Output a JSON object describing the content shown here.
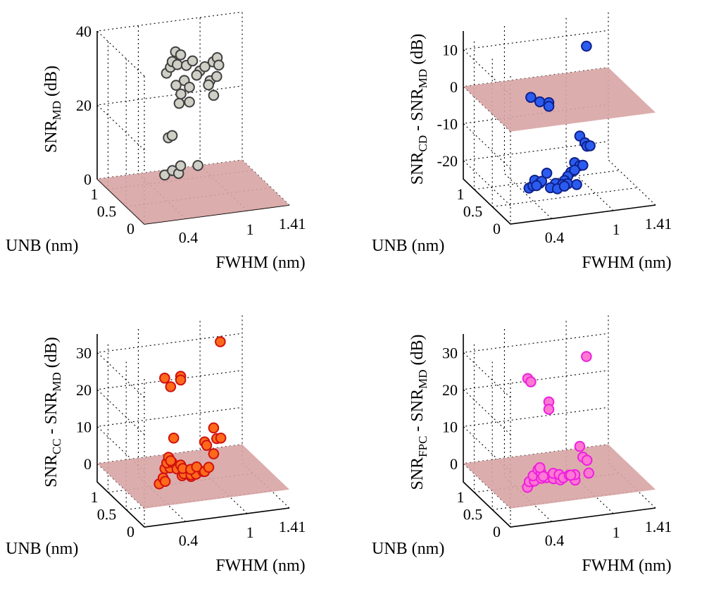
{
  "figure": {
    "layout": "2x2 grid of 3D scatter plots"
  },
  "chart_data": [
    {
      "type": "scatter",
      "dims": 3,
      "panel": "top-left",
      "zlabel": {
        "main": "SNR",
        "sub": "MD",
        "suffix": "(dB)"
      },
      "zlabel_parts": [
        {
          "t": "SNR",
          "sub": false
        },
        {
          "t": "MD",
          "sub": true
        },
        {
          "t": " (dB)",
          "sub": false
        }
      ],
      "xlabel": "FWHM (nm)",
      "ylabel": "UNB (nm)",
      "xticks": [
        "0.4",
        "1",
        "1.41"
      ],
      "yticks": [
        "0",
        "0.5",
        "1"
      ],
      "zticks": [
        "0",
        "20",
        "40"
      ],
      "zlim": [
        0,
        40
      ],
      "plane_z": 0,
      "marker_fill": "#cfcfc6",
      "marker_edge": "#404040",
      "plane_color": "#d8a4a4",
      "points": [
        {
          "x": 0.55,
          "y": 0.7,
          "z": 38
        },
        {
          "x": 0.6,
          "y": 0.7,
          "z": 37
        },
        {
          "x": 0.5,
          "y": 0.65,
          "z": 36
        },
        {
          "x": 0.5,
          "y": 0.7,
          "z": 34
        },
        {
          "x": 0.55,
          "y": 0.65,
          "z": 35
        },
        {
          "x": 0.62,
          "y": 0.6,
          "z": 35
        },
        {
          "x": 0.68,
          "y": 0.6,
          "z": 36
        },
        {
          "x": 0.75,
          "y": 0.6,
          "z": 33
        },
        {
          "x": 0.8,
          "y": 0.6,
          "z": 34
        },
        {
          "x": 0.88,
          "y": 0.6,
          "z": 35
        },
        {
          "x": 0.92,
          "y": 0.6,
          "z": 36
        },
        {
          "x": 0.72,
          "y": 0.6,
          "z": 32
        },
        {
          "x": 0.9,
          "y": 0.5,
          "z": 35
        },
        {
          "x": 0.48,
          "y": 0.75,
          "z": 32
        },
        {
          "x": 0.52,
          "y": 0.6,
          "z": 30
        },
        {
          "x": 0.55,
          "y": 0.55,
          "z": 28
        },
        {
          "x": 0.6,
          "y": 0.6,
          "z": 31
        },
        {
          "x": 0.65,
          "y": 0.6,
          "z": 29
        },
        {
          "x": 0.8,
          "y": 0.5,
          "z": 30
        },
        {
          "x": 0.85,
          "y": 0.6,
          "z": 30
        },
        {
          "x": 0.88,
          "y": 0.5,
          "z": 32
        },
        {
          "x": 0.55,
          "y": 0.6,
          "z": 25
        },
        {
          "x": 0.65,
          "y": 0.6,
          "z": 25
        },
        {
          "x": 0.85,
          "y": 0.5,
          "z": 27
        },
        {
          "x": 0.48,
          "y": 0.7,
          "z": 15
        },
        {
          "x": 0.5,
          "y": 0.65,
          "z": 16
        },
        {
          "x": 0.48,
          "y": 0.8,
          "z": 4
        },
        {
          "x": 0.52,
          "y": 0.7,
          "z": 6
        },
        {
          "x": 0.58,
          "y": 0.7,
          "z": 5
        },
        {
          "x": 0.6,
          "y": 0.7,
          "z": 7
        },
        {
          "x": 0.75,
          "y": 0.65,
          "z": 7
        }
      ]
    },
    {
      "type": "scatter",
      "dims": 3,
      "panel": "top-right",
      "zlabel_parts": [
        {
          "t": "SNR",
          "sub": false
        },
        {
          "t": "CD",
          "sub": true
        },
        {
          "t": " - SNR",
          "sub": false
        },
        {
          "t": "MD",
          "sub": true
        },
        {
          "t": " (dB)",
          "sub": false
        }
      ],
      "xlabel": "FWHM (nm)",
      "ylabel": "UNB (nm)",
      "xticks": [
        "0.4",
        "1",
        "1.41"
      ],
      "yticks": [
        "0",
        "0.5",
        "1"
      ],
      "zticks": [
        "-20",
        "-10",
        "0",
        "10"
      ],
      "zlim": [
        -25,
        15
      ],
      "plane_z": 0,
      "marker_fill": "#2a5cf0",
      "marker_edge": "#10208a",
      "plane_color": "#d8a4a4",
      "points": [
        {
          "x": 0.95,
          "y": 0.6,
          "z": 14
        },
        {
          "x": 0.48,
          "y": 0.8,
          "z": 0
        },
        {
          "x": 0.55,
          "y": 0.75,
          "z": -1
        },
        {
          "x": 0.62,
          "y": 0.7,
          "z": -1
        },
        {
          "x": 0.62,
          "y": 0.7,
          "z": -2
        },
        {
          "x": 0.85,
          "y": 0.5,
          "z": -9
        },
        {
          "x": 0.9,
          "y": 0.5,
          "z": -11
        },
        {
          "x": 0.92,
          "y": 0.5,
          "z": -12
        },
        {
          "x": 0.95,
          "y": 0.5,
          "z": -12
        },
        {
          "x": 0.8,
          "y": 0.5,
          "z": -16
        },
        {
          "x": 0.85,
          "y": 0.5,
          "z": -17
        },
        {
          "x": 0.88,
          "y": 0.5,
          "z": -17
        },
        {
          "x": 0.8,
          "y": 0.5,
          "z": -18
        },
        {
          "x": 0.78,
          "y": 0.55,
          "z": -19
        },
        {
          "x": 0.75,
          "y": 0.55,
          "z": -20
        },
        {
          "x": 0.6,
          "y": 0.7,
          "z": -20
        },
        {
          "x": 0.72,
          "y": 0.55,
          "z": -21
        },
        {
          "x": 0.7,
          "y": 0.55,
          "z": -22
        },
        {
          "x": 0.7,
          "y": 0.5,
          "z": -22
        },
        {
          "x": 0.5,
          "y": 0.75,
          "z": -22
        },
        {
          "x": 0.55,
          "y": 0.7,
          "z": -22
        },
        {
          "x": 0.65,
          "y": 0.6,
          "z": -22
        },
        {
          "x": 0.75,
          "y": 0.55,
          "z": -22
        },
        {
          "x": 0.82,
          "y": 0.5,
          "z": -22
        },
        {
          "x": 0.5,
          "y": 0.7,
          "z": -23
        },
        {
          "x": 0.55,
          "y": 0.75,
          "z": -23
        },
        {
          "x": 0.6,
          "y": 0.6,
          "z": -23
        },
        {
          "x": 0.65,
          "y": 0.55,
          "z": -23
        },
        {
          "x": 0.5,
          "y": 0.8,
          "z": -24
        },
        {
          "x": 0.48,
          "y": 0.85,
          "z": -25
        }
      ]
    },
    {
      "type": "scatter",
      "dims": 3,
      "panel": "bottom-left",
      "zlabel_parts": [
        {
          "t": "SNR",
          "sub": false
        },
        {
          "t": "CC",
          "sub": true
        },
        {
          "t": " - SNR",
          "sub": false
        },
        {
          "t": "MD",
          "sub": true
        },
        {
          "t": " (dB)",
          "sub": false
        }
      ],
      "xlabel": "FWHM (nm)",
      "ylabel": "UNB (nm)",
      "xticks": [
        "0.4",
        "1",
        "1.41"
      ],
      "yticks": [
        "0",
        "0.5",
        "1"
      ],
      "zticks": [
        "0",
        "10",
        "20",
        "30"
      ],
      "zlim": [
        -5,
        35
      ],
      "plane_z": 0,
      "marker_fill": "#ff6a1a",
      "marker_edge": "#d01010",
      "plane_color": "#d8a4a4",
      "points": [
        {
          "x": 0.95,
          "y": 0.6,
          "z": 36
        },
        {
          "x": 0.48,
          "y": 0.8,
          "z": 26
        },
        {
          "x": 0.52,
          "y": 0.75,
          "z": 24
        },
        {
          "x": 0.6,
          "y": 0.7,
          "z": 27
        },
        {
          "x": 0.6,
          "y": 0.7,
          "z": 26
        },
        {
          "x": 0.85,
          "y": 0.5,
          "z": 14
        },
        {
          "x": 0.88,
          "y": 0.5,
          "z": 11
        },
        {
          "x": 0.92,
          "y": 0.5,
          "z": 11
        },
        {
          "x": 0.78,
          "y": 0.55,
          "z": 10
        },
        {
          "x": 0.8,
          "y": 0.55,
          "z": 9
        },
        {
          "x": 0.55,
          "y": 0.75,
          "z": 10
        },
        {
          "x": 0.85,
          "y": 0.5,
          "z": 7
        },
        {
          "x": 0.5,
          "y": 0.75,
          "z": 5
        },
        {
          "x": 0.52,
          "y": 0.75,
          "z": 4
        },
        {
          "x": 0.5,
          "y": 0.8,
          "z": 3
        },
        {
          "x": 0.55,
          "y": 0.8,
          "z": 3
        },
        {
          "x": 0.6,
          "y": 0.7,
          "z": 3
        },
        {
          "x": 0.62,
          "y": 0.7,
          "z": 2
        },
        {
          "x": 0.68,
          "y": 0.65,
          "z": 2
        },
        {
          "x": 0.72,
          "y": 0.6,
          "z": 3
        },
        {
          "x": 0.78,
          "y": 0.55,
          "z": 2
        },
        {
          "x": 0.82,
          "y": 0.55,
          "z": 3
        },
        {
          "x": 0.5,
          "y": 0.85,
          "z": 1
        },
        {
          "x": 0.55,
          "y": 0.85,
          "z": 1
        },
        {
          "x": 0.6,
          "y": 0.8,
          "z": 1
        },
        {
          "x": 0.65,
          "y": 0.75,
          "z": 0
        },
        {
          "x": 0.7,
          "y": 0.7,
          "z": 0
        },
        {
          "x": 0.75,
          "y": 0.7,
          "z": 0
        },
        {
          "x": 0.8,
          "y": 0.65,
          "z": 1
        },
        {
          "x": 0.72,
          "y": 0.75,
          "z": -1
        },
        {
          "x": 0.65,
          "y": 0.8,
          "z": -1
        },
        {
          "x": 0.5,
          "y": 0.9,
          "z": -2
        },
        {
          "x": 0.52,
          "y": 0.9,
          "z": -3
        },
        {
          "x": 0.48,
          "y": 0.95,
          "z": -4
        }
      ]
    },
    {
      "type": "scatter",
      "dims": 3,
      "panel": "bottom-right",
      "zlabel_parts": [
        {
          "t": "SNR",
          "sub": false
        },
        {
          "t": "FPC",
          "sub": true
        },
        {
          "t": " - SNR",
          "sub": false
        },
        {
          "t": "MD",
          "sub": true
        },
        {
          "t": " (dB)",
          "sub": false
        }
      ],
      "xlabel": "FWHM (nm)",
      "ylabel": "UNB (nm)",
      "xticks": [
        "0.4",
        "1",
        "1.41"
      ],
      "yticks": [
        "0",
        "0.5",
        "1"
      ],
      "zticks": [
        "0",
        "10",
        "20",
        "30"
      ],
      "zlim": [
        -5,
        35
      ],
      "plane_z": 0,
      "marker_fill": "#ff78d2",
      "marker_edge": "#ee20dd",
      "plane_color": "#d8a4a4",
      "points": [
        {
          "x": 0.95,
          "y": 0.6,
          "z": 32
        },
        {
          "x": 0.45,
          "y": 0.8,
          "z": 26
        },
        {
          "x": 0.48,
          "y": 0.8,
          "z": 25
        },
        {
          "x": 0.62,
          "y": 0.7,
          "z": 20
        },
        {
          "x": 0.62,
          "y": 0.7,
          "z": 18
        },
        {
          "x": 0.85,
          "y": 0.5,
          "z": 9
        },
        {
          "x": 0.88,
          "y": 0.5,
          "z": 6
        },
        {
          "x": 0.92,
          "y": 0.5,
          "z": 5
        },
        {
          "x": 0.92,
          "y": 0.45,
          "z": 2
        },
        {
          "x": 0.82,
          "y": 0.55,
          "z": 1
        },
        {
          "x": 0.78,
          "y": 0.55,
          "z": 1
        },
        {
          "x": 0.55,
          "y": 0.75,
          "z": 2
        },
        {
          "x": 0.55,
          "y": 0.8,
          "z": 1
        },
        {
          "x": 0.58,
          "y": 0.8,
          "z": 0
        },
        {
          "x": 0.52,
          "y": 0.85,
          "z": -1
        },
        {
          "x": 0.6,
          "y": 0.8,
          "z": -1
        },
        {
          "x": 0.68,
          "y": 0.75,
          "z": 0
        },
        {
          "x": 0.72,
          "y": 0.7,
          "z": 0
        },
        {
          "x": 0.76,
          "y": 0.7,
          "z": -1
        },
        {
          "x": 0.8,
          "y": 0.65,
          "z": 0
        },
        {
          "x": 0.84,
          "y": 0.6,
          "z": -1
        },
        {
          "x": 0.6,
          "y": 0.85,
          "z": -2
        },
        {
          "x": 0.65,
          "y": 0.85,
          "z": -2
        },
        {
          "x": 0.7,
          "y": 0.8,
          "z": -2
        },
        {
          "x": 0.75,
          "y": 0.75,
          "z": -2
        },
        {
          "x": 0.5,
          "y": 0.9,
          "z": -3
        },
        {
          "x": 0.55,
          "y": 0.9,
          "z": -3
        },
        {
          "x": 0.52,
          "y": 0.95,
          "z": -4
        },
        {
          "x": 0.5,
          "y": 0.95,
          "z": -5
        }
      ]
    }
  ]
}
